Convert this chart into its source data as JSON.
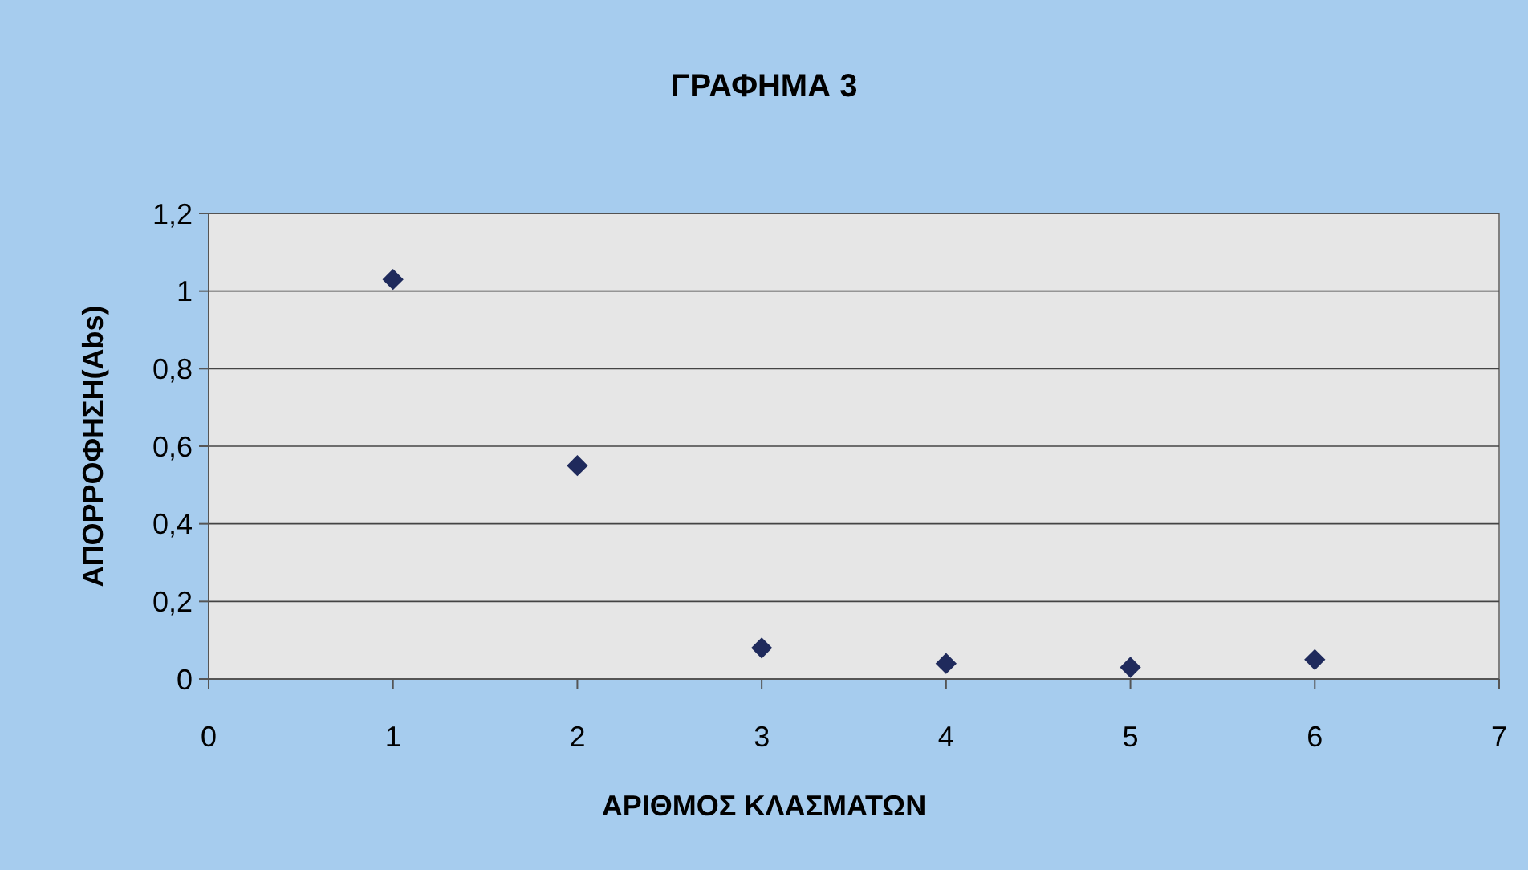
{
  "chart_data": {
    "type": "scatter",
    "title": "ΓΡΑΦΗΜΑ 3",
    "xlabel": "ΑΡΙΘΜΟΣ ΚΛΑΣΜΑΤΩΝ",
    "ylabel": "ΑΠΟΡΡΟΦΗΣΗ(Abs)",
    "x": [
      1,
      2,
      3,
      4,
      5,
      6
    ],
    "series": [
      {
        "color": "#1f2a5c",
        "values": [
          1.03,
          0.55,
          0.08,
          0.04,
          0.03,
          0.05
        ]
      }
    ],
    "xlim": [
      0,
      7
    ],
    "xticks": [
      0,
      1,
      2,
      3,
      4,
      5,
      6,
      7
    ],
    "ylim": [
      0,
      1.2
    ],
    "yticks": [
      0,
      {
        "value": 0.2,
        "label": "0,2"
      },
      {
        "value": 0.4,
        "label": "0,4"
      },
      {
        "value": 0.6,
        "label": "0,6"
      },
      {
        "value": 0.8,
        "label": "0,8"
      },
      1,
      {
        "value": 1.2,
        "label": "1,2"
      }
    ],
    "grid": "y",
    "marker": "diamond"
  }
}
